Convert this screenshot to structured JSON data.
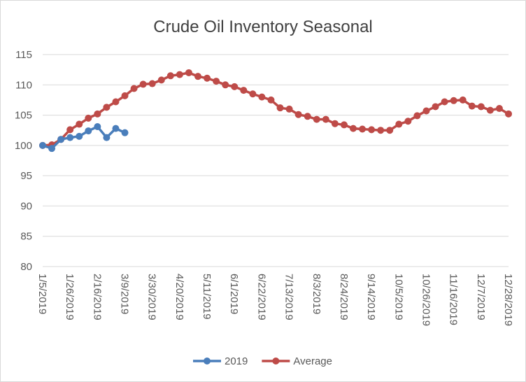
{
  "chart_data": {
    "type": "line",
    "title": "Crude Oil Inventory Seasonal",
    "categories": [
      "1/5/2019",
      null,
      null,
      "1/26/2019",
      null,
      null,
      "2/16/2019",
      null,
      null,
      "3/9/2019",
      null,
      null,
      "3/30/2019",
      null,
      null,
      "4/20/2019",
      null,
      null,
      "5/11/2019",
      null,
      null,
      "6/1/2019",
      null,
      null,
      "6/22/2019",
      null,
      null,
      "7/13/2019",
      null,
      null,
      "8/3/2019",
      null,
      null,
      "8/24/2019",
      null,
      null,
      "9/14/2019",
      null,
      null,
      "10/5/2019",
      null,
      null,
      "10/26/2019",
      null,
      null,
      "11/16/2019",
      null,
      null,
      "12/7/2019",
      null,
      null,
      "12/28/2019"
    ],
    "series": [
      {
        "name": "2019",
        "color": "#4a7ebb",
        "values": [
          100,
          99.5,
          101.0,
          101.3,
          101.5,
          102.4,
          103.1,
          101.3,
          102.8,
          102.1,
          null,
          null,
          null,
          null,
          null,
          null,
          null,
          null,
          null,
          null,
          null,
          null,
          null,
          null,
          null,
          null,
          null,
          null,
          null,
          null,
          null,
          null,
          null,
          null,
          null,
          null,
          null,
          null,
          null,
          null,
          null,
          null,
          null,
          null,
          null,
          null,
          null,
          null,
          null,
          null,
          null,
          null
        ]
      },
      {
        "name": "Average",
        "color": "#be4b48",
        "values": [
          100,
          100.1,
          101.0,
          102.6,
          103.5,
          104.5,
          105.2,
          106.3,
          107.2,
          108.2,
          109.4,
          110.1,
          110.2,
          110.8,
          111.5,
          111.7,
          112.0,
          111.4,
          111.1,
          110.6,
          110.0,
          109.7,
          109.1,
          108.5,
          108.0,
          107.5,
          106.2,
          106.0,
          105.1,
          104.8,
          104.3,
          104.3,
          103.6,
          103.4,
          102.8,
          102.7,
          102.6,
          102.5,
          102.5,
          103.5,
          104.0,
          104.9,
          105.7,
          106.4,
          107.2,
          107.4,
          107.5,
          106.5,
          106.4,
          105.8,
          106.1,
          105.2
        ]
      }
    ],
    "ylim": [
      80,
      115
    ],
    "yticks": [
      80,
      85,
      90,
      95,
      100,
      105,
      110,
      115
    ],
    "grid": true,
    "legend": "bottom"
  }
}
